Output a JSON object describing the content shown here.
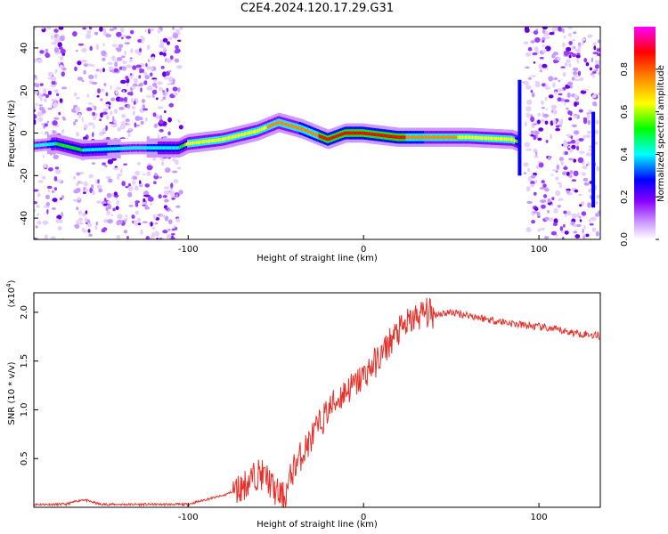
{
  "title": "C2E4.2024.120.17.29.G31",
  "chart_data": [
    {
      "type": "heatmap",
      "xlabel": "Height of straight line (km)",
      "ylabel": "Frequency (Hz)",
      "xlim": [
        -188,
        135
      ],
      "ylim": [
        -50,
        50
      ],
      "x_ticks": [
        -100,
        0,
        100
      ],
      "x_tick_labels": [
        "-100",
        "0",
        "100"
      ],
      "y_ticks": [
        -40,
        -20,
        0,
        20,
        40
      ],
      "y_tick_labels": [
        "-40",
        "-20",
        "0",
        "20",
        "40"
      ],
      "colorbar": {
        "label": "Normalized spectral amplitude",
        "range": [
          0,
          1
        ],
        "ticks": [
          0.0,
          0.2,
          0.4,
          0.6,
          0.8
        ],
        "tick_labels": [
          "0.0",
          "0.2",
          "0.4",
          "0.6",
          "0.8"
        ],
        "colors": [
          "#ffffff",
          "#cc99ff",
          "#8800ff",
          "#0000ff",
          "#00ffff",
          "#00ff00",
          "#ffff00",
          "#ff8800",
          "#ff0000",
          "#ff00ff"
        ]
      },
      "noise_regions": [
        [
          -188,
          -170
        ],
        [
          -165,
          -104
        ],
        [
          92,
          135
        ]
      ],
      "ridge": [
        {
          "x": -188,
          "y": -6
        },
        {
          "x": -175,
          "y": -5
        },
        {
          "x": -160,
          "y": -8
        },
        {
          "x": -130,
          "y": -7
        },
        {
          "x": -105,
          "y": -7
        },
        {
          "x": -100,
          "y": -5
        },
        {
          "x": -80,
          "y": -3
        },
        {
          "x": -60,
          "y": 1
        },
        {
          "x": -48,
          "y": 5
        },
        {
          "x": -35,
          "y": 2
        },
        {
          "x": -20,
          "y": -3
        },
        {
          "x": -10,
          "y": 0
        },
        {
          "x": 0,
          "y": 0
        },
        {
          "x": 20,
          "y": -2
        },
        {
          "x": 60,
          "y": -2
        },
        {
          "x": 85,
          "y": -3
        },
        {
          "x": 88,
          "y": -4
        }
      ],
      "ridge_intensity": [
        0.4,
        0.5,
        0.5,
        0.45,
        0.5,
        0.65,
        0.7,
        0.7,
        0.75,
        0.8,
        0.85,
        0.85,
        0.9,
        0.85,
        0.7,
        0.7,
        0.6
      ]
    },
    {
      "type": "line",
      "xlabel": "Height of straight line (km)",
      "ylabel": "SNR (10 * v/v)",
      "y_multiplier": "(x10",
      "y_multiplier_exp": "4",
      "xlim": [
        -188,
        135
      ],
      "ylim": [
        0,
        2.2
      ],
      "x_ticks": [
        -100,
        0,
        100
      ],
      "x_tick_labels": [
        "-100",
        "0",
        "100"
      ],
      "y_ticks": [
        0.5,
        1.0,
        1.5,
        2.0
      ],
      "y_tick_labels": [
        "0.5",
        "1.0",
        "1.5",
        "2.0"
      ],
      "series": [
        {
          "color": "#e8302a",
          "x": [
            -188,
            -170,
            -160,
            -150,
            -120,
            -100,
            -90,
            -80,
            -70,
            -60,
            -55,
            -50,
            -45,
            -40,
            -35,
            -30,
            -25,
            -20,
            -15,
            -10,
            -5,
            0,
            5,
            10,
            15,
            20,
            25,
            30,
            35,
            40,
            50,
            60,
            70,
            80,
            90,
            100,
            110,
            120,
            130,
            135
          ],
          "y": [
            0.03,
            0.03,
            0.08,
            0.03,
            0.03,
            0.03,
            0.08,
            0.12,
            0.2,
            0.35,
            0.3,
            0.15,
            0.1,
            0.4,
            0.55,
            0.7,
            0.85,
            1.0,
            1.1,
            1.2,
            1.25,
            1.35,
            1.45,
            1.55,
            1.7,
            1.8,
            1.88,
            1.95,
            2.0,
            1.98,
            2.0,
            1.97,
            1.93,
            1.9,
            1.87,
            1.85,
            1.82,
            1.79,
            1.77,
            1.76
          ]
        }
      ]
    }
  ]
}
